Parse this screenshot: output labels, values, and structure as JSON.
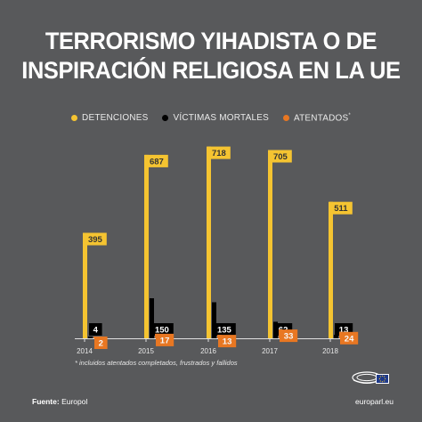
{
  "title_lines": [
    "TERRORISMO YIHADISTA O DE",
    "INSPIRACIÓN RELIGIOSA EN LA UE"
  ],
  "legend": [
    {
      "label": "DETENCIONES",
      "color": "#f5c431"
    },
    {
      "label": "VÍCTIMAS MORTALES",
      "color": "#000000"
    },
    {
      "label": "ATENTADOS",
      "color": "#e87722",
      "marker": "*"
    }
  ],
  "footnote": "incluidos atentados completados, frustrados y fallidos",
  "footnote_marker": "*",
  "source_label": "Fuente:",
  "source_value": "Europol",
  "brand": "europarl.eu",
  "colors": {
    "background": "#58595b",
    "detenciones": "#f5c431",
    "victimas": "#000000",
    "atentados": "#e87722",
    "axis": "#e0e0e0"
  },
  "chart_data": {
    "type": "bar",
    "categories": [
      "2014",
      "2015",
      "2016",
      "2017",
      "2018"
    ],
    "series": [
      {
        "name": "DETENCIONES",
        "values": [
          395,
          687,
          718,
          705,
          511
        ]
      },
      {
        "name": "VÍCTIMAS MORTALES",
        "values": [
          4,
          150,
          135,
          62,
          13
        ]
      },
      {
        "name": "ATENTADOS",
        "values": [
          2,
          17,
          13,
          33,
          24
        ]
      }
    ],
    "ylim": [
      0,
      750
    ],
    "grid": false,
    "legend_position": "top"
  }
}
